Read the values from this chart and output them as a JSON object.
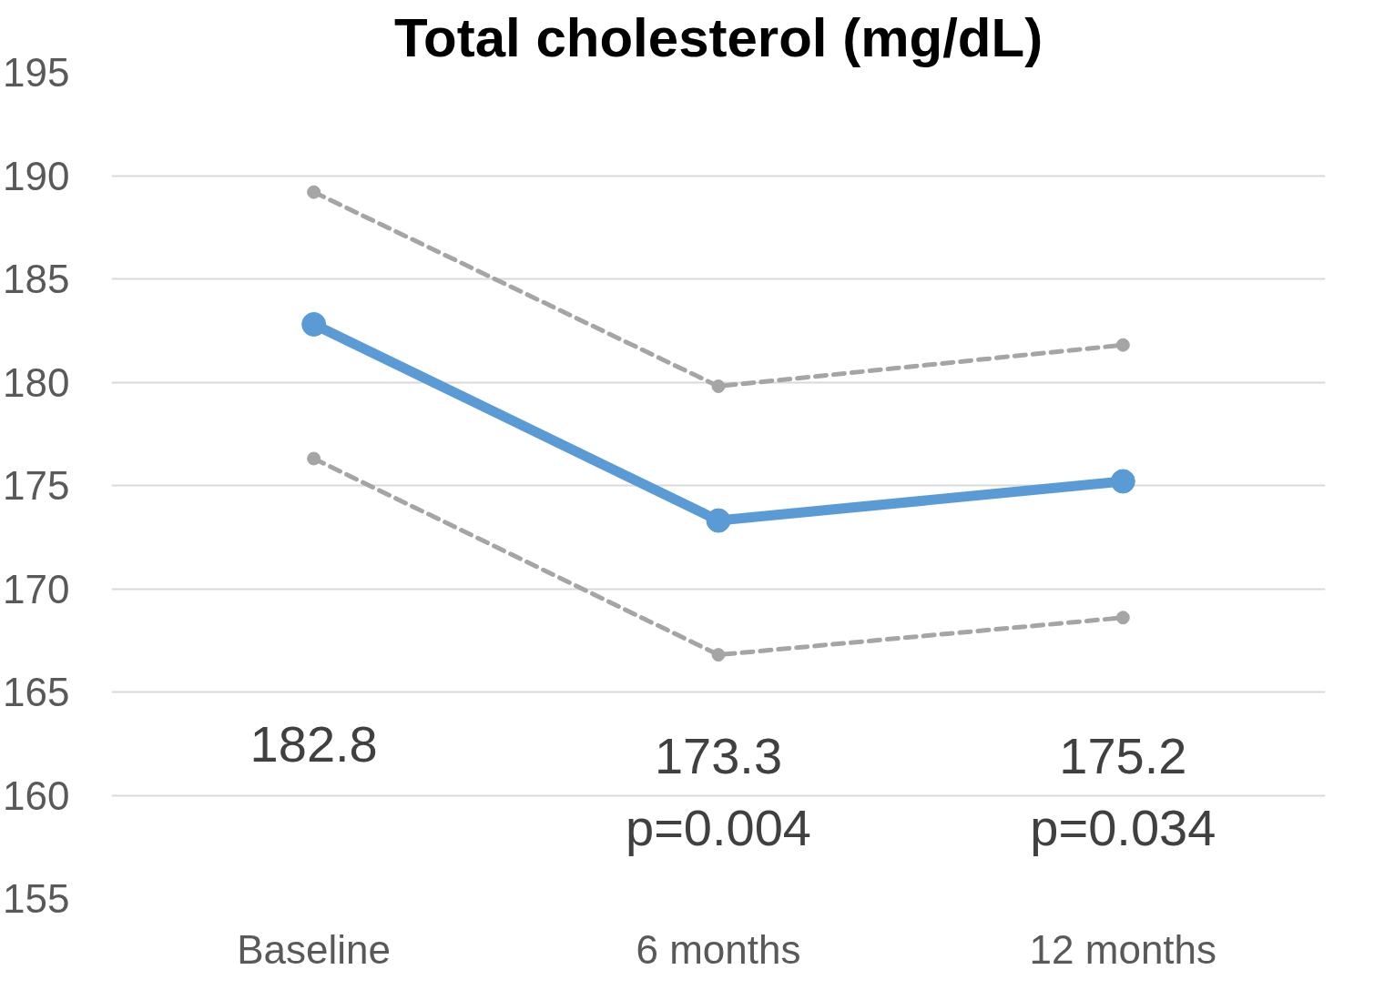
{
  "chart_data": {
    "type": "line",
    "title": "Total cholesterol (mg/dL)",
    "categories": [
      "Baseline",
      "6 months",
      "12 months"
    ],
    "series": [
      {
        "color": "#5b9bd5",
        "values": [
          182.8,
          173.3,
          175.2
        ],
        "line_style": "solid"
      },
      {
        "color": "#a5a5a5",
        "values": [
          189.2,
          179.8,
          181.8
        ],
        "line_style": "dashed"
      },
      {
        "color": "#a5a5a5",
        "values": [
          176.3,
          166.8,
          168.6
        ],
        "line_style": "dashed"
      }
    ],
    "ylim": [
      155,
      195
    ],
    "yticks": [
      155,
      160,
      165,
      170,
      175,
      180,
      185,
      190,
      195
    ],
    "grid": "y",
    "marker": "circle",
    "annotations": [
      "182.8",
      "173.3\np=0.004",
      "175.2\np=0.034"
    ]
  }
}
